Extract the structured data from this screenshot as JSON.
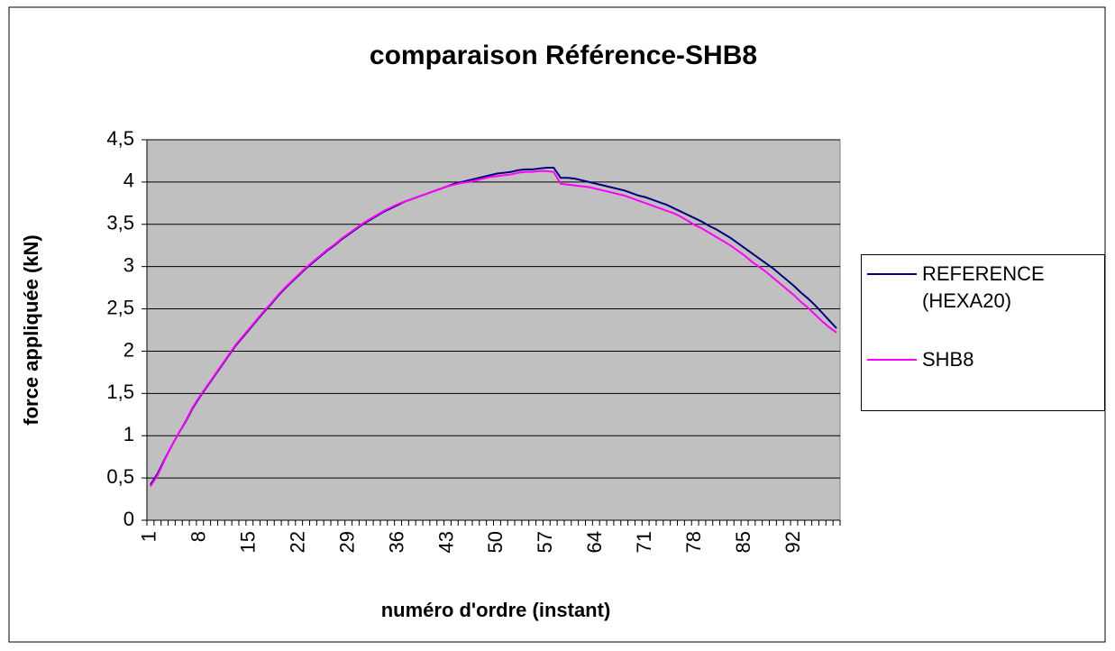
{
  "chart_data": {
    "type": "line",
    "title": "comparaison Référence-SHB8",
    "x_label": "numéro d'ordre (instant)",
    "y_label": "force appliquée (kN)",
    "categories": [
      1,
      null,
      null,
      null,
      null,
      null,
      null,
      8,
      null,
      null,
      null,
      null,
      null,
      null,
      15,
      null,
      null,
      null,
      null,
      null,
      null,
      22,
      null,
      null,
      null,
      null,
      null,
      null,
      29,
      null,
      null,
      null,
      null,
      null,
      null,
      36,
      null,
      null,
      null,
      null,
      null,
      null,
      43,
      null,
      null,
      null,
      null,
      null,
      null,
      50,
      null,
      null,
      null,
      null,
      null,
      null,
      57,
      null,
      null,
      null,
      null,
      null,
      null,
      64,
      null,
      null,
      null,
      null,
      null,
      null,
      71,
      null,
      null,
      null,
      null,
      null,
      null,
      78,
      null,
      null,
      null,
      null,
      null,
      null,
      85,
      null,
      null,
      null,
      null,
      null,
      null,
      92,
      null,
      null,
      null,
      null,
      null,
      null
    ],
    "series": [
      {
        "name": "REFERENCE (HEXA20)",
        "color": "#000080",
        "values": [
          0.42,
          0.55,
          0.72,
          0.88,
          1.03,
          1.17,
          1.33,
          1.46,
          1.58,
          1.7,
          1.82,
          1.94,
          2.06,
          2.16,
          2.26,
          2.36,
          2.46,
          2.55,
          2.65,
          2.74,
          2.82,
          2.9,
          2.98,
          3.05,
          3.12,
          3.19,
          3.25,
          3.32,
          3.38,
          3.44,
          3.5,
          3.55,
          3.6,
          3.65,
          3.69,
          3.73,
          3.77,
          3.8,
          3.83,
          3.86,
          3.89,
          3.92,
          3.95,
          3.98,
          4.0,
          4.02,
          4.04,
          4.06,
          4.08,
          4.1,
          4.11,
          4.12,
          4.14,
          4.15,
          4.15,
          4.16,
          4.17,
          4.17,
          4.05,
          4.05,
          4.04,
          4.02,
          4.0,
          3.98,
          3.96,
          3.94,
          3.92,
          3.9,
          3.87,
          3.84,
          3.82,
          3.79,
          3.76,
          3.73,
          3.69,
          3.65,
          3.61,
          3.57,
          3.53,
          3.48,
          3.44,
          3.39,
          3.34,
          3.28,
          3.22,
          3.16,
          3.1,
          3.04,
          2.98,
          2.91,
          2.84,
          2.77,
          2.69,
          2.62,
          2.54,
          2.45,
          2.36,
          2.27
        ]
      },
      {
        "name": "SHB8",
        "color": "#ff00ff",
        "values": [
          0.4,
          0.53,
          0.71,
          0.88,
          1.03,
          1.18,
          1.34,
          1.47,
          1.59,
          1.71,
          1.83,
          1.95,
          2.07,
          2.17,
          2.27,
          2.37,
          2.47,
          2.56,
          2.66,
          2.75,
          2.83,
          2.91,
          2.99,
          3.06,
          3.13,
          3.2,
          3.26,
          3.33,
          3.39,
          3.45,
          3.51,
          3.56,
          3.61,
          3.66,
          3.7,
          3.74,
          3.77,
          3.8,
          3.83,
          3.86,
          3.89,
          3.92,
          3.95,
          3.97,
          3.99,
          4.0,
          4.02,
          4.04,
          4.06,
          4.07,
          4.08,
          4.09,
          4.11,
          4.12,
          4.12,
          4.13,
          4.13,
          4.12,
          3.98,
          3.97,
          3.96,
          3.95,
          3.94,
          3.92,
          3.9,
          3.88,
          3.86,
          3.84,
          3.81,
          3.78,
          3.75,
          3.72,
          3.69,
          3.66,
          3.63,
          3.59,
          3.54,
          3.49,
          3.45,
          3.4,
          3.35,
          3.3,
          3.25,
          3.19,
          3.13,
          3.06,
          3.0,
          2.94,
          2.87,
          2.8,
          2.73,
          2.66,
          2.58,
          2.51,
          2.43,
          2.35,
          2.28,
          2.22
        ]
      }
    ],
    "ylim": [
      0,
      4.5
    ],
    "yticks": [
      0,
      {
        "value": 0.5,
        "label": "0,5"
      },
      1,
      {
        "value": 1.5,
        "label": "1,5"
      },
      2,
      {
        "value": 2.5,
        "label": "2,5"
      },
      3,
      {
        "value": 3.5,
        "label": "3,5"
      },
      4,
      {
        "value": 4.5,
        "label": "4,5"
      }
    ],
    "grid": true,
    "plot_background": "#c0c0c0",
    "legend": "right"
  }
}
